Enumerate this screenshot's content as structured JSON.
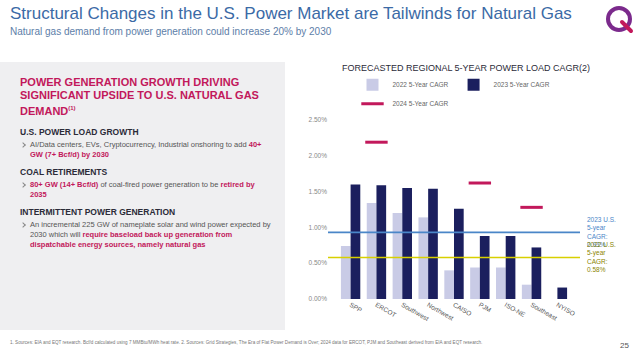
{
  "slide": {
    "title": "Structural Changes in the U.S. Power Market are Tailwinds for Natural Gas",
    "subtitle": "Natural gas demand from power generation could increase 20% by 2030",
    "page": "25",
    "footnote": "1. Sources: EIA and EQT research. Bcf/d calculated using 7 MMBtu/MWh heat rate. 2. Sources: Grid Strategies, The Era of Flat Power Demand is Over; 2024 data for ERCOT, PJM and Southeast derived from EIA and EQT research."
  },
  "panel": {
    "title": "POWER GENERATION GROWTH DRIVING SIGNIFICANT UPSIDE TO U.S. NATURAL GAS DEMAND",
    "title_note": "(1)",
    "sections": [
      {
        "heading": "U.S. POWER LOAD GROWTH",
        "bullet": [
          {
            "text": "AI/Data centers, EVs, Cryptocurrency, Industrial onshoring to add "
          },
          {
            "text": "40+ GW (7+ Bcf/d) by 2030",
            "highlight": true
          }
        ]
      },
      {
        "heading": "COAL RETIREMENTS",
        "bullet": [
          {
            "text": "80+ GW (14+ Bcf/d)",
            "highlight": true
          },
          {
            "text": " of coal-fired power generation to be "
          },
          {
            "text": "retired by 2035",
            "highlight": true
          }
        ]
      },
      {
        "heading": "INTERMITTENT POWER GENERATION",
        "bullet": [
          {
            "text": "An incremental 225 GW of nameplate solar and wind power expected by 2030 which will "
          },
          {
            "text": "require baseload back up generation from dispatchable energy sources, namely natural gas",
            "highlight": true
          }
        ]
      }
    ]
  },
  "chart_data": {
    "type": "bar",
    "title": "FORECASTED REGIONAL 5-YEAR POWER LOAD CAGR(2)",
    "categories": [
      "SPP",
      "ERCOT",
      "Southwest",
      "Northwest",
      "CAISO",
      "PJM",
      "ISO-NE",
      "Southeast",
      "NYISO"
    ],
    "series": [
      {
        "name": "2022 5-Year CAGR",
        "color": "#c9cbe6",
        "values": [
          0.74,
          1.34,
          1.2,
          1.14,
          0.4,
          0.44,
          0.44,
          0.2,
          null
        ]
      },
      {
        "name": "2023 5-Year CAGR",
        "color": "#1b1f5e",
        "values": [
          1.6,
          1.59,
          1.55,
          1.54,
          1.26,
          0.88,
          0.88,
          0.72,
          0.16
        ]
      },
      {
        "name": "2024 5-Year CAGR",
        "color": "#c2185b",
        "type": "scatter",
        "marker": "dash",
        "values": [
          null,
          2.19,
          null,
          null,
          null,
          1.62,
          null,
          1.28,
          null
        ]
      }
    ],
    "reference_lines": [
      {
        "label": [
          "2023 U.S.",
          "5-year",
          "CAGR:",
          "0.93%"
        ],
        "value": 0.93,
        "color": "#4a86c8"
      },
      {
        "label": [
          "2022 U.S.",
          "5-year",
          "CAGR:",
          "0.58%"
        ],
        "value": 0.58,
        "color": "#d8d000"
      }
    ],
    "ylim": [
      0,
      2.5
    ],
    "yticks": [
      {
        "value": 0,
        "label": "0.00%"
      },
      {
        "value": 0.5,
        "label": "0.50%"
      },
      {
        "value": 1.0,
        "label": "1.00%"
      },
      {
        "value": 1.5,
        "label": "1.50%"
      },
      {
        "value": 2.0,
        "label": "2.00%"
      },
      {
        "value": 2.5,
        "label": "2.50%"
      }
    ],
    "grid": false,
    "legend": "top"
  }
}
